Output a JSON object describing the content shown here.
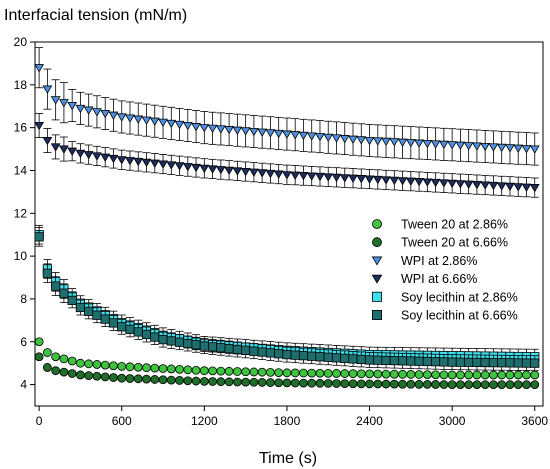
{
  "chart_data": {
    "type": "scatter",
    "ylabel": "Interfacial tension (mN/m)",
    "xlabel": "Time (s)",
    "xlim": [
      -30,
      3660
    ],
    "ylim": [
      3,
      20
    ],
    "x_ticks": [
      0,
      600,
      1200,
      1800,
      2400,
      3000,
      3600
    ],
    "y_ticks": [
      4,
      6,
      8,
      10,
      12,
      14,
      16,
      18,
      20
    ],
    "grid": false,
    "legend_position": "right",
    "series": [
      {
        "name": "Tween 20 at 2.86%",
        "marker": "circle",
        "color": "#3ec43e",
        "points": [
          [
            0,
            6.0
          ],
          [
            60,
            5.5
          ],
          [
            120,
            5.3
          ],
          [
            300,
            5.0
          ],
          [
            600,
            4.85
          ],
          [
            1200,
            4.65
          ],
          [
            1800,
            4.55
          ],
          [
            2400,
            4.5
          ],
          [
            3000,
            4.45
          ],
          [
            3600,
            4.45
          ]
        ],
        "error": 0.05
      },
      {
        "name": "Tween 20 at 6.66%",
        "marker": "circle",
        "color": "#1f6e2a",
        "points": [
          [
            0,
            5.3
          ],
          [
            60,
            4.8
          ],
          [
            120,
            4.65
          ],
          [
            300,
            4.45
          ],
          [
            600,
            4.3
          ],
          [
            1200,
            4.15
          ],
          [
            1800,
            4.08
          ],
          [
            2400,
            4.03
          ],
          [
            3000,
            4.0
          ],
          [
            3600,
            4.0
          ]
        ],
        "error": 0.05
      },
      {
        "name": "WPI at 2.86%",
        "marker": "triangle-down",
        "color": "#4e8fe0",
        "points": [
          [
            0,
            18.8
          ],
          [
            60,
            17.8
          ],
          [
            120,
            17.3
          ],
          [
            300,
            16.9
          ],
          [
            600,
            16.5
          ],
          [
            1200,
            16.0
          ],
          [
            1800,
            15.7
          ],
          [
            2400,
            15.4
          ],
          [
            3000,
            15.2
          ],
          [
            3600,
            15.0
          ]
        ],
        "error": 0.75
      },
      {
        "name": "WPI at 6.66%",
        "marker": "triangle-down",
        "color": "#1d2e5c",
        "points": [
          [
            0,
            16.1
          ],
          [
            60,
            15.4
          ],
          [
            120,
            15.1
          ],
          [
            300,
            14.8
          ],
          [
            600,
            14.5
          ],
          [
            1200,
            14.1
          ],
          [
            1800,
            13.8
          ],
          [
            2400,
            13.6
          ],
          [
            3000,
            13.4
          ],
          [
            3600,
            13.2
          ]
        ],
        "error": 0.45
      },
      {
        "name": "Soy lecithin at 2.86%",
        "marker": "square",
        "color": "#3fe0ee",
        "points": [
          [
            0,
            11.0
          ],
          [
            60,
            9.4
          ],
          [
            120,
            8.8
          ],
          [
            300,
            7.8
          ],
          [
            600,
            6.9
          ],
          [
            900,
            6.3
          ],
          [
            1200,
            5.9
          ],
          [
            1800,
            5.6
          ],
          [
            2400,
            5.4
          ],
          [
            3000,
            5.35
          ],
          [
            3600,
            5.3
          ]
        ],
        "error": 0.35
      },
      {
        "name": "Soy lecithin at 6.66%",
        "marker": "square",
        "color": "#1f6e6e",
        "points": [
          [
            0,
            10.9
          ],
          [
            60,
            9.2
          ],
          [
            120,
            8.6
          ],
          [
            300,
            7.6
          ],
          [
            600,
            6.7
          ],
          [
            900,
            6.1
          ],
          [
            1200,
            5.8
          ],
          [
            1800,
            5.4
          ],
          [
            2400,
            5.15
          ],
          [
            3000,
            5.05
          ],
          [
            3600,
            5.0
          ]
        ],
        "error": 0.35
      }
    ]
  }
}
